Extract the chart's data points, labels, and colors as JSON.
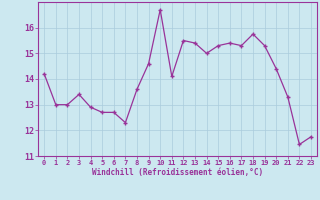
{
  "x": [
    0,
    1,
    2,
    3,
    4,
    5,
    6,
    7,
    8,
    9,
    10,
    11,
    12,
    13,
    14,
    15,
    16,
    17,
    18,
    19,
    20,
    21,
    22,
    23
  ],
  "y": [
    14.2,
    13.0,
    13.0,
    13.4,
    12.9,
    12.7,
    12.7,
    12.3,
    13.6,
    14.6,
    16.7,
    14.1,
    15.5,
    15.4,
    15.0,
    15.3,
    15.4,
    15.3,
    15.75,
    15.3,
    14.4,
    13.3,
    11.45,
    11.75
  ],
  "line_color": "#993399",
  "marker": "+",
  "marker_size": 3,
  "marker_lw": 1.0,
  "bg_color": "#cce8f0",
  "grid_color": "#aaccdd",
  "axis_label_color": "#993399",
  "tick_color": "#993399",
  "xlabel": "Windchill (Refroidissement éolien,°C)",
  "ylim": [
    11,
    17
  ],
  "yticks": [
    11,
    12,
    13,
    14,
    15,
    16
  ],
  "xlim": [
    -0.5,
    23.5
  ],
  "xticks": [
    0,
    1,
    2,
    3,
    4,
    5,
    6,
    7,
    8,
    9,
    10,
    11,
    12,
    13,
    14,
    15,
    16,
    17,
    18,
    19,
    20,
    21,
    22,
    23
  ]
}
